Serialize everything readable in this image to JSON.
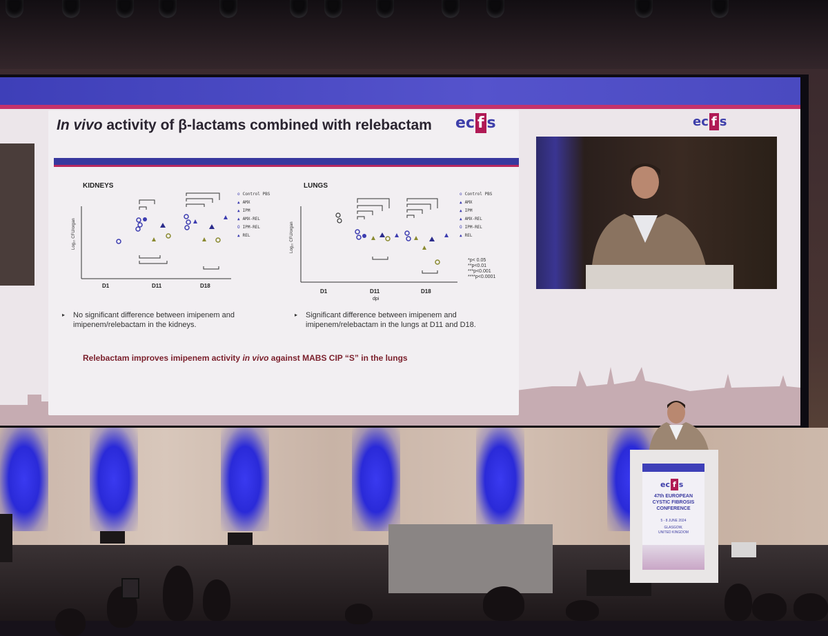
{
  "slide": {
    "title_italic": "In vivo",
    "title_rest": " activity of β-lactams combined with relebactam",
    "logo_prefix": "ec",
    "logo_box": "f",
    "logo_suffix": "s",
    "kidneys": {
      "title": "KIDNEYS",
      "ylabel": "Log₁₀ CFU/organ",
      "yticks": [
        "10",
        "8",
        "6",
        "4",
        "2",
        "0"
      ],
      "xticks": [
        "D1",
        "D11",
        "D18"
      ],
      "bullet": "No significant difference between imipenem and imipenem/relebactam in the kidneys."
    },
    "lungs": {
      "title": "LUNGS",
      "ylabel": "Log₁₀ CFU/organ",
      "yticks": [
        "10",
        "8",
        "6",
        "4",
        "2",
        "0"
      ],
      "xticks": [
        "D1",
        "D11",
        "D18"
      ],
      "xlabel": "dpi",
      "bullet": "Significant difference between imipenem and imipenem/relebactam in the lungs at D11 and D18."
    },
    "legend": [
      "Control PBS",
      "AMX",
      "IPM",
      "AMX-REL",
      "IPM-REL",
      "REL"
    ],
    "legend_markers": [
      "o",
      "▲",
      "▲",
      "▲",
      "O",
      "▲"
    ],
    "pvalues": [
      "*p< 0.05",
      "**p<0.01",
      "***p<0.001",
      "****p<0.0001"
    ],
    "conclusion_pre": "Relebactam improves imipenem activity ",
    "conclusion_italic": "in vivo",
    "conclusion_post": " against MABS CIP “S” in the lungs"
  },
  "right_logo": {
    "prefix": "ec",
    "box": "f",
    "suffix": "s"
  },
  "podium": {
    "logo_prefix": "ec",
    "logo_box": "f",
    "logo_suffix": "s",
    "line1": "47th EUROPEAN",
    "line2": "CYSTIC FIBROSIS",
    "line3": "CONFERENCE",
    "date": "5 - 8 JUNE 2024",
    "city": "GLASGOW,",
    "country": "UNITED KINGDOM"
  },
  "colors": {
    "accent_blue": "#3e3fb8",
    "accent_magenta": "#b01a55",
    "conclusion": "#7a1f2b",
    "stage_light": "#2a2ad8"
  }
}
